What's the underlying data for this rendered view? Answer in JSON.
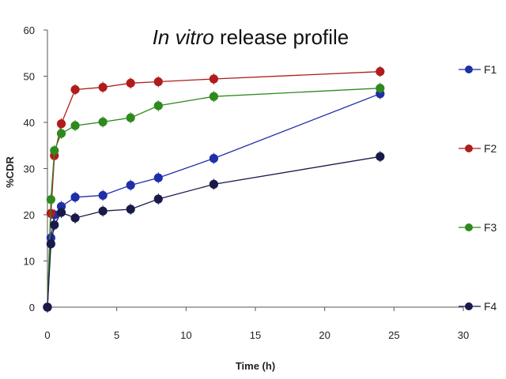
{
  "chart_data": {
    "type": "line",
    "title_italic": "In vitro",
    "title_rest": " release profile",
    "xlabel": "Time (h)",
    "ylabel": "%CDR",
    "xlim": [
      0,
      30
    ],
    "ylim": [
      0,
      60
    ],
    "xticks": [
      0,
      5,
      10,
      15,
      20,
      25,
      30
    ],
    "yticks": [
      0,
      10,
      20,
      30,
      40,
      50,
      60
    ],
    "grid": false,
    "legend_position": "right",
    "x": [
      0,
      0.25,
      0.5,
      1,
      2,
      4,
      6,
      8,
      12,
      24
    ],
    "series": [
      {
        "name": "F1",
        "color": "#1f2fa8",
        "values": [
          0,
          15,
          20,
          21.8,
          23.8,
          24.2,
          26.4,
          28,
          32.2,
          46.2
        ]
      },
      {
        "name": "F2",
        "color": "#b01c1c",
        "values": [
          0,
          20.3,
          32.8,
          39.7,
          47.1,
          47.6,
          48.5,
          48.8,
          49.4,
          51
        ]
      },
      {
        "name": "F3",
        "color": "#2e8a1e",
        "values": [
          0,
          23.3,
          33.9,
          37.6,
          39.3,
          40.1,
          41,
          43.6,
          45.6,
          47.4
        ]
      },
      {
        "name": "F4",
        "color": "#1a1a4a",
        "values": [
          0,
          13.7,
          17.8,
          20.5,
          19.3,
          20.8,
          21.2,
          23.4,
          26.6,
          32.6
        ]
      }
    ]
  }
}
